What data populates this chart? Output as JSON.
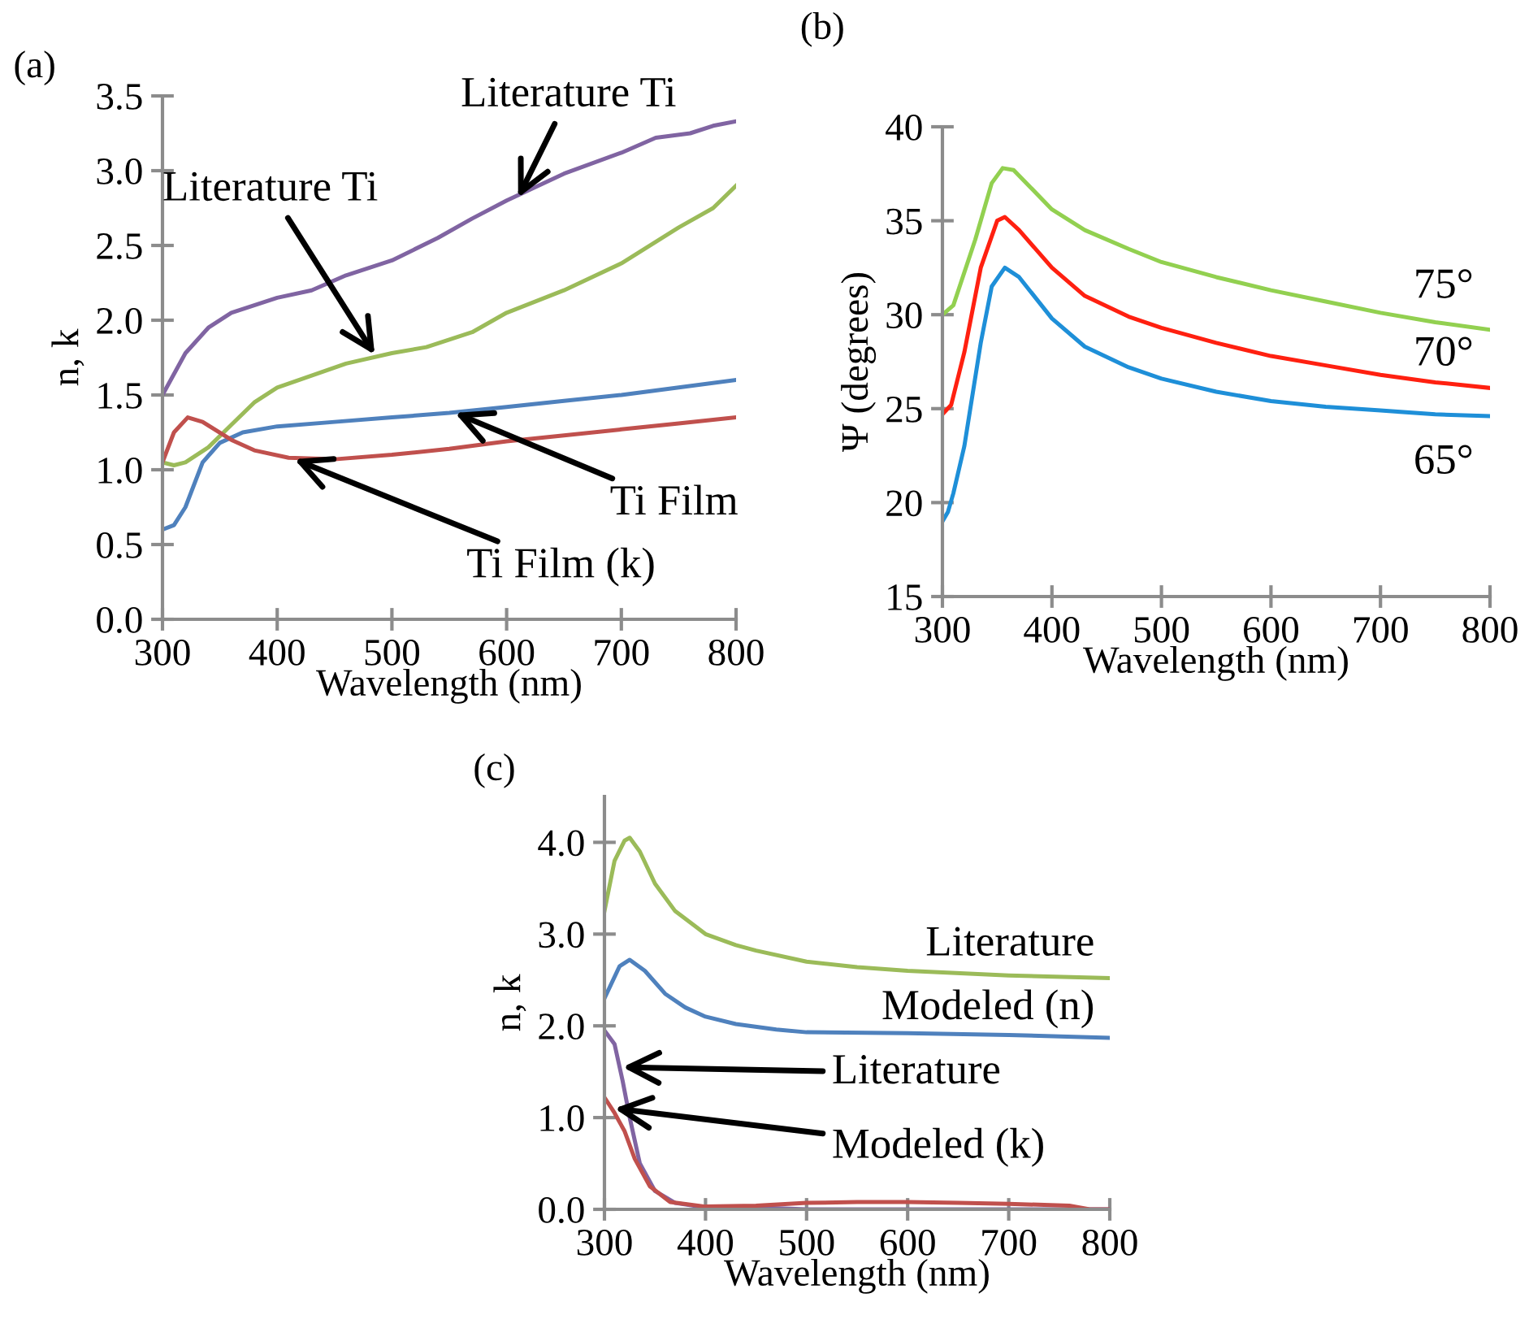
{
  "chart_data": [
    {
      "type": "line",
      "title": "(a)",
      "xlabel": "Wavelength (nm)",
      "ylabel": "n, k",
      "xlim": [
        300,
        800
      ],
      "xticks": [
        300,
        400,
        500,
        600,
        700,
        800
      ],
      "ylim": [
        0,
        3.5
      ],
      "yticks": [
        {
          "value": 0,
          "label": "0.0"
        },
        0.5,
        {
          "value": 1,
          "label": "1.0"
        },
        1.5,
        {
          "value": 2,
          "label": "2.0"
        },
        2.5,
        {
          "value": 3,
          "label": "3.0"
        },
        3.5
      ],
      "grid": false,
      "legend": false,
      "series": [
        {
          "color": "#8064a2",
          "x": [
            300,
            320,
            340,
            360,
            400,
            430,
            460,
            500,
            540,
            570,
            600,
            650,
            700,
            730,
            760,
            780,
            800
          ],
          "values": [
            1.5,
            1.78,
            1.95,
            2.05,
            2.15,
            2.2,
            2.3,
            2.4,
            2.55,
            2.68,
            2.8,
            2.98,
            3.12,
            3.22,
            3.25,
            3.3,
            3.33
          ]
        },
        {
          "color": "#9bbb59",
          "x": [
            300,
            310,
            320,
            340,
            360,
            380,
            400,
            430,
            460,
            500,
            530,
            570,
            600,
            650,
            700,
            750,
            780,
            800
          ],
          "values": [
            1.05,
            1.03,
            1.05,
            1.15,
            1.3,
            1.45,
            1.55,
            1.63,
            1.71,
            1.78,
            1.82,
            1.92,
            2.05,
            2.2,
            2.38,
            2.62,
            2.75,
            2.9
          ]
        },
        {
          "color": "#4f81bd",
          "x": [
            300,
            310,
            320,
            335,
            350,
            370,
            400,
            450,
            500,
            550,
            600,
            650,
            700,
            750,
            800
          ],
          "values": [
            0.6,
            0.63,
            0.75,
            1.05,
            1.18,
            1.25,
            1.29,
            1.32,
            1.35,
            1.38,
            1.42,
            1.46,
            1.5,
            1.55,
            1.6
          ]
        },
        {
          "color": "#c0504d",
          "x": [
            300,
            310,
            322,
            335,
            360,
            380,
            410,
            450,
            500,
            550,
            600,
            650,
            700,
            750,
            800
          ],
          "values": [
            1.05,
            1.25,
            1.35,
            1.32,
            1.2,
            1.13,
            1.08,
            1.07,
            1.1,
            1.14,
            1.19,
            1.23,
            1.27,
            1.31,
            1.35
          ]
        }
      ],
      "annotations": [
        {
          "text": "Literature Ti",
          "x": 610,
          "y": 2.82
        },
        {
          "text": "Literature Ti",
          "x": 485,
          "y": 1.77
        },
        {
          "text": "Ti Film",
          "x": 555,
          "y": 1.38
        },
        {
          "text": "Ti Film (k)",
          "x": 415,
          "y": 1.07
        }
      ]
    },
    {
      "type": "line",
      "title": "(b)",
      "xlabel": "Wavelength (nm)",
      "ylabel": "Ψ (degrees)",
      "xlim": [
        300,
        800
      ],
      "xticks": [
        300,
        400,
        500,
        600,
        700,
        800
      ],
      "ylim": [
        15,
        40
      ],
      "yticks": [
        15,
        20,
        25,
        30,
        35,
        40
      ],
      "grid": false,
      "legend": false,
      "series": [
        {
          "name": "75°",
          "color": "#92d050",
          "x": [
            300,
            310,
            330,
            345,
            355,
            365,
            380,
            400,
            430,
            470,
            500,
            550,
            600,
            650,
            700,
            750,
            800
          ],
          "values": [
            30,
            30.5,
            34,
            37,
            37.8,
            37.7,
            36.8,
            35.6,
            34.5,
            33.5,
            32.8,
            32,
            31.3,
            30.7,
            30.1,
            29.6,
            29.2
          ]
        },
        {
          "name": "70°",
          "color": "#ff2010",
          "x": [
            300,
            308,
            320,
            335,
            350,
            357,
            370,
            400,
            430,
            470,
            500,
            550,
            600,
            650,
            700,
            750,
            800
          ],
          "values": [
            24.7,
            25.2,
            28,
            32.5,
            35,
            35.2,
            34.5,
            32.5,
            31,
            29.9,
            29.3,
            28.5,
            27.8,
            27.3,
            26.8,
            26.4,
            26.1
          ]
        },
        {
          "name": "65°",
          "color": "#1e8fd8",
          "x": [
            300,
            305,
            310,
            320,
            335,
            345,
            357,
            370,
            400,
            430,
            470,
            500,
            550,
            600,
            650,
            700,
            750,
            800
          ],
          "values": [
            19,
            19.5,
            20.5,
            23,
            28.5,
            31.5,
            32.5,
            32,
            29.8,
            28.3,
            27.2,
            26.6,
            25.9,
            25.4,
            25.1,
            24.9,
            24.7,
            24.6
          ]
        }
      ]
    },
    {
      "type": "line",
      "title": "(c)",
      "xlabel": "Wavelength (nm)",
      "ylabel": "n, k",
      "xlim": [
        300,
        800
      ],
      "xticks": [
        300,
        400,
        500,
        600,
        700,
        800
      ],
      "ylim": [
        0,
        4.5
      ],
      "yticks": [
        {
          "value": 0,
          "label": "0.0"
        },
        {
          "value": 1,
          "label": "1.0"
        },
        {
          "value": 2,
          "label": "2.0"
        },
        {
          "value": 3,
          "label": "3.0"
        },
        {
          "value": 4,
          "label": "4.0"
        }
      ],
      "grid": false,
      "legend": false,
      "series": [
        {
          "name": "Literature",
          "color": "#9bbb59",
          "x": [
            300,
            310,
            320,
            325,
            335,
            350,
            370,
            400,
            430,
            450,
            500,
            550,
            600,
            700,
            800
          ],
          "values": [
            3.25,
            3.8,
            4.02,
            4.05,
            3.9,
            3.55,
            3.25,
            3.0,
            2.88,
            2.82,
            2.7,
            2.64,
            2.6,
            2.55,
            2.52
          ]
        },
        {
          "name": "Modeled (n)",
          "color": "#4f81bd",
          "x": [
            300,
            315,
            325,
            340,
            360,
            380,
            400,
            430,
            470,
            500,
            600,
            700,
            800
          ],
          "values": [
            2.3,
            2.65,
            2.72,
            2.6,
            2.35,
            2.2,
            2.1,
            2.02,
            1.96,
            1.93,
            1.92,
            1.9,
            1.87
          ]
        },
        {
          "color": "#8064a2",
          "x": [
            300,
            310,
            318,
            325,
            335,
            350,
            370,
            400,
            450,
            500,
            800
          ],
          "values": [
            1.95,
            1.8,
            1.4,
            1.0,
            0.5,
            0.2,
            0.07,
            0.02,
            0.02,
            0.0,
            0.0
          ]
        },
        {
          "color": "#c0504d",
          "x": [
            300,
            310,
            320,
            330,
            345,
            365,
            400,
            450,
            500,
            550,
            600,
            650,
            700,
            760,
            780,
            800
          ],
          "values": [
            1.22,
            1.05,
            0.85,
            0.55,
            0.25,
            0.08,
            0.03,
            0.04,
            0.07,
            0.08,
            0.08,
            0.07,
            0.06,
            0.04,
            0.0,
            0.0
          ]
        }
      ],
      "annotations": [
        {
          "text": "Literature",
          "x": 318,
          "y": 1.55
        },
        {
          "text": "Modeled (k)",
          "x": 310,
          "y": 1.1
        }
      ]
    }
  ]
}
